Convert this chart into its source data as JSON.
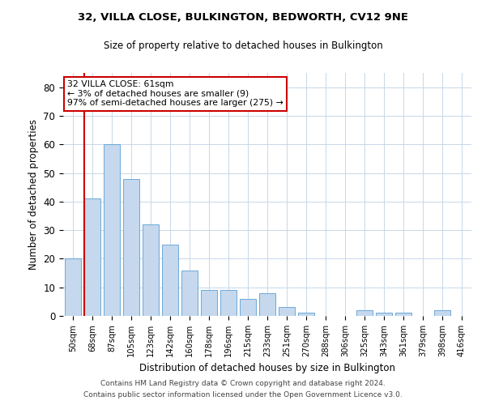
{
  "title1": "32, VILLA CLOSE, BULKINGTON, BEDWORTH, CV12 9NE",
  "title2": "Size of property relative to detached houses in Bulkington",
  "xlabel": "Distribution of detached houses by size in Bulkington",
  "ylabel": "Number of detached properties",
  "categories": [
    "50sqm",
    "68sqm",
    "87sqm",
    "105sqm",
    "123sqm",
    "142sqm",
    "160sqm",
    "178sqm",
    "196sqm",
    "215sqm",
    "233sqm",
    "251sqm",
    "270sqm",
    "288sqm",
    "306sqm",
    "325sqm",
    "343sqm",
    "361sqm",
    "379sqm",
    "398sqm",
    "416sqm"
  ],
  "values": [
    20,
    41,
    60,
    48,
    32,
    25,
    16,
    9,
    9,
    6,
    8,
    3,
    1,
    0,
    0,
    2,
    1,
    1,
    0,
    2,
    0
  ],
  "bar_color": "#c5d8ed",
  "bar_edge_color": "#5a9fd4",
  "annotation_line1": "32 VILLA CLOSE: 61sqm",
  "annotation_line2": "← 3% of detached houses are smaller (9)",
  "annotation_line3": "97% of semi-detached houses are larger (275) →",
  "annotation_box_color": "#ffffff",
  "annotation_box_edge_color": "#cc0000",
  "vline_color": "#cc0000",
  "vline_x_index": 1,
  "ylim": [
    0,
    85
  ],
  "yticks": [
    0,
    10,
    20,
    30,
    40,
    50,
    60,
    70,
    80
  ],
  "footer1": "Contains HM Land Registry data © Crown copyright and database right 2024.",
  "footer2": "Contains public sector information licensed under the Open Government Licence v3.0.",
  "bg_color": "#ffffff",
  "grid_color": "#c8d8e8"
}
